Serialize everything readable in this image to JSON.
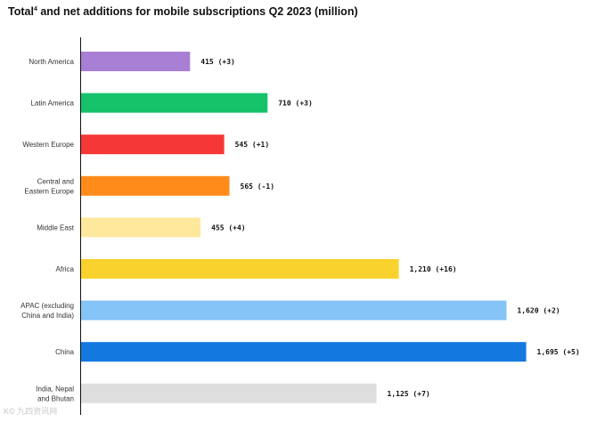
{
  "title": {
    "main": "Total",
    "sup": "4",
    "rest": " and net additions for mobile subscriptions Q2 2023 (million)"
  },
  "chart_data": {
    "type": "bar",
    "orientation": "horizontal",
    "title": "Total4 and net additions for mobile subscriptions Q2 2023 (million)",
    "categories": [
      [
        "North America"
      ],
      [
        "Latin America"
      ],
      [
        "Western Europe"
      ],
      [
        "Central and",
        "Eastern Europe"
      ],
      [
        "Middle East"
      ],
      [
        "Africa"
      ],
      [
        "APAC (excluding",
        "China and India)"
      ],
      [
        "China"
      ],
      [
        "India, Nepal",
        "and Bhutan"
      ]
    ],
    "values": [
      415,
      710,
      545,
      565,
      455,
      1210,
      1620,
      1695,
      1125
    ],
    "labels": [
      "415 (+3)",
      "710 (+3)",
      "545 (+1)",
      "565 (-1)",
      "455 (+4)",
      "1,210 (+16)",
      "1,620 (+2)",
      "1,695 (+5)",
      "1,125 (+7)"
    ],
    "net_additions": [
      3,
      3,
      1,
      -1,
      4,
      16,
      2,
      5,
      7
    ],
    "colors": [
      "#a97fd6",
      "#16c26a",
      "#f53737",
      "#ff8c1a",
      "#fde89c",
      "#fad22d",
      "#85c4f7",
      "#1378e0",
      "#dedede"
    ],
    "xlim": [
      0,
      1700
    ],
    "grid": false,
    "legend": "none"
  },
  "watermark": "K© 九四资讯网"
}
